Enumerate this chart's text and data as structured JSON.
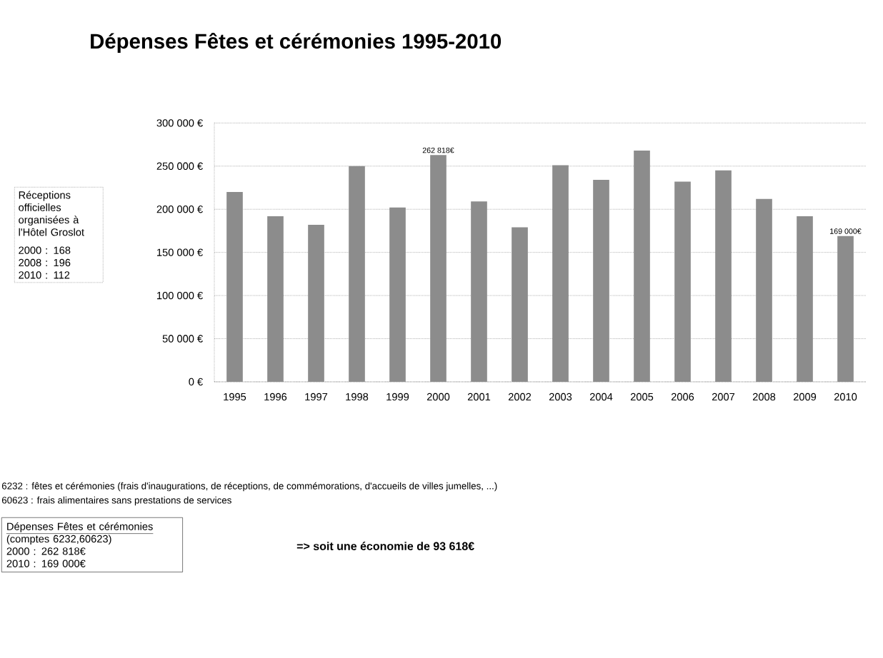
{
  "chart_data": {
    "type": "bar",
    "title": "Dépenses Fêtes et cérémonies 1995-2010",
    "categories": [
      "1995",
      "1996",
      "1997",
      "1998",
      "1999",
      "2000",
      "2001",
      "2002",
      "2003",
      "2004",
      "2005",
      "2006",
      "2007",
      "2008",
      "2009",
      "2010"
    ],
    "values": [
      220000,
      192000,
      182000,
      250000,
      202000,
      262818,
      209000,
      179000,
      251000,
      234000,
      268000,
      232000,
      245000,
      212000,
      192000,
      169000
    ],
    "value_labels": [
      null,
      null,
      null,
      null,
      null,
      "262 818€",
      null,
      null,
      null,
      null,
      null,
      null,
      null,
      null,
      null,
      "169 000€"
    ],
    "color": "#8c8c8c",
    "ylim": [
      0,
      300000
    ],
    "yticks": [
      {
        "value": 0,
        "label": "0 €"
      },
      {
        "value": 50000,
        "label": "50 000 €"
      },
      {
        "value": 100000,
        "label": "100 000 €"
      },
      {
        "value": 150000,
        "label": "150 000 €"
      },
      {
        "value": 200000,
        "label": "200 000 €"
      },
      {
        "value": 250000,
        "label": "250 000 €"
      },
      {
        "value": 300000,
        "label": "300 000 €"
      }
    ],
    "grid": "y",
    "annotations": [
      "Réceptions officielles organisées à l'Hôtel Groslot",
      "2000 : 168",
      "2008 : 196",
      "2010 : 112",
      "6232 : fêtes et cérémonies (frais d'inaugurations, de réceptions, de commémorations, d'accueils de villes jumelles, ...)",
      "60623 : frais alimentaires sans prestations de services",
      "Dépenses Fêtes et cérémonies",
      "(comptes 6232,60623)",
      "2000 : 262 818€",
      "2010 : 169 000€",
      "=> soit une économie de 93 618€"
    ]
  }
}
